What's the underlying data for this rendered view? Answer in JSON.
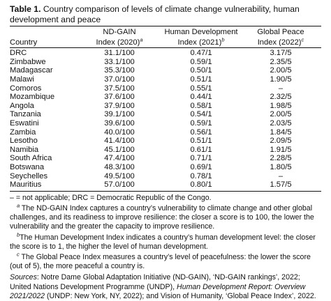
{
  "caption": {
    "label": "Table 1.",
    "text": " Country comparison of levels of climate change vulnerability, human development and peace"
  },
  "columns": {
    "country": "Country",
    "ndgain_line1": "ND-GAIN",
    "ndgain_line2": "Index (2020)",
    "ndgain_note": "a",
    "hdi_line1": "Human Development",
    "hdi_line2": "Index (2021)",
    "hdi_note": "b",
    "gpi_line1": "Global Peace",
    "gpi_line2": "Index (2022)",
    "gpi_note": "c"
  },
  "rows": [
    {
      "country": "DRC",
      "ndgain": "31.1/100",
      "hdi": "0.47/1",
      "gpi": "3.17/5"
    },
    {
      "country": "Zimbabwe",
      "ndgain": "33.1/100",
      "hdi": "0.59/1",
      "gpi": "2.35/5"
    },
    {
      "country": "Madagascar",
      "ndgain": "35.3/100",
      "hdi": "0.50/1",
      "gpi": "2.00/5"
    },
    {
      "country": "Malawi",
      "ndgain": "37.0/100",
      "hdi": "0.51/1",
      "gpi": "1.90/5"
    },
    {
      "country": "Comoros",
      "ndgain": "37.5/100",
      "hdi": "0.55/1",
      "gpi": "–"
    },
    {
      "country": "Mozambique",
      "ndgain": "37.6/100",
      "hdi": "0.44/1",
      "gpi": "2.32/5"
    },
    {
      "country": "Angola",
      "ndgain": "37.9/100",
      "hdi": "0.58/1",
      "gpi": "1.98/5"
    },
    {
      "country": "Tanzania",
      "ndgain": "39.1/100",
      "hdi": "0.54/1",
      "gpi": "2.00/5"
    },
    {
      "country": "Eswatini",
      "ndgain": "39.6/100",
      "hdi": "0.59/1",
      "gpi": "2.03/5"
    },
    {
      "country": "Zambia",
      "ndgain": "40.0/100",
      "hdi": "0.56/1",
      "gpi": "1.84/5"
    },
    {
      "country": "Lesotho",
      "ndgain": "41.4/100",
      "hdi": "0.51/1",
      "gpi": "2.09/5"
    },
    {
      "country": "Namibia",
      "ndgain": "45.1/100",
      "hdi": "0.61/1",
      "gpi": "1.91/5"
    },
    {
      "country": "South Africa",
      "ndgain": "47.4/100",
      "hdi": "0.71/1",
      "gpi": "2.28/5"
    },
    {
      "country": "Botswana",
      "ndgain": "48.3/100",
      "hdi": "0.69/1",
      "gpi": "1.80/5"
    },
    {
      "country": "Seychelles",
      "ndgain": "49.5/100",
      "hdi": "0.78/1",
      "gpi": "–"
    },
    {
      "country": "Mauritius",
      "ndgain": "57.0/100",
      "hdi": "0.80/1",
      "gpi": "1.57/5"
    }
  ],
  "notes": {
    "abbrev": "– = not applicable; DRC = Democratic Republic of the Congo.",
    "a_mark": "a",
    "a_text": " The ND-GAIN Index captures a country’s vulnerability to climate change and other global challenges, and its readiness to improve resilience: the closer a score is to 100, the lower the vulnerability and the greater the capacity to improve resilience.",
    "b_mark": "b",
    "b_text": "The Human Development Index indicates a country’s human development level: the closer the score is to 1, the higher the level of human development.",
    "c_mark": "c",
    "c_text": " The Global Peace Index measures a country’s level of peacefulness: the lower the score (out of 5), the more peaceful a country is.",
    "sources_label": "Sources",
    "sources_part1": ": Notre Dame Global Adaptation Initiative (ND-GAIN), ‘ND-GAIN rankings’, 2022; United Nations Development Programme (UNDP), ",
    "sources_title": "Human Development Report: Overview 2021/2022",
    "sources_part2": " (UNDP: New York, NY, 2022); and Vision of Humanity, ‘Global Peace Index’, 2022."
  }
}
